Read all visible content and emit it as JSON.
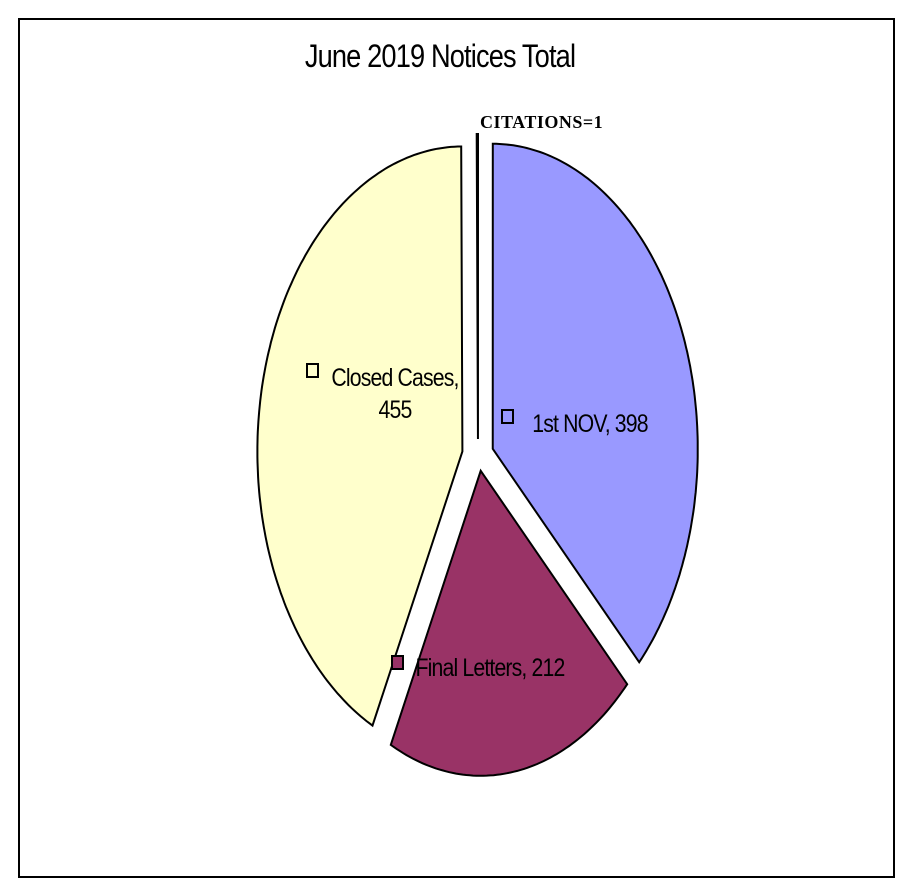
{
  "chart_data": {
    "type": "pie",
    "title": "June 2019 Notices Total",
    "values": [
      398,
      212,
      455,
      1
    ],
    "value_labels": [
      "1st NOV, 398",
      "Final Letters, 212",
      "Closed Cases, 455",
      "CITATIONS=1"
    ],
    "colors": [
      "#9999ff",
      "#993366",
      "#ffffcc",
      "#ffffff"
    ]
  }
}
